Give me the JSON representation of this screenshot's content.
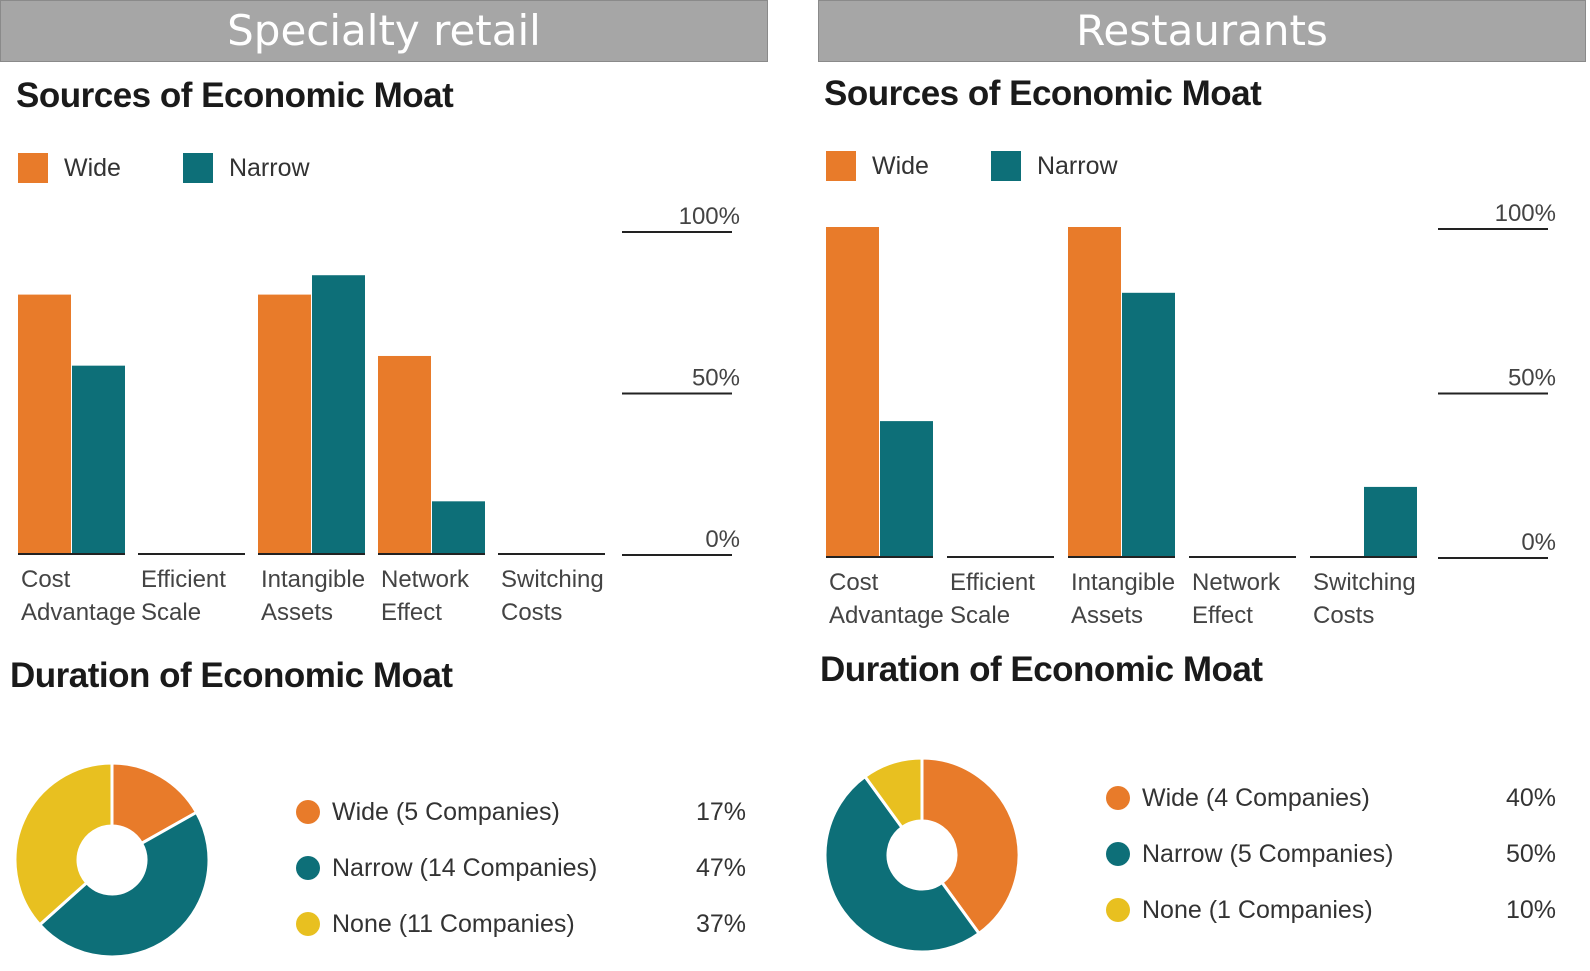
{
  "colors": {
    "wide": "#e87b2a",
    "narrow": "#0d6f78",
    "none": "#e8c020",
    "banner": "#a6a6a6"
  },
  "legend": {
    "wide": "Wide",
    "narrow": "Narrow"
  },
  "panels": [
    {
      "banner": "Specialty retail",
      "sources_title": "Sources of Economic Moat",
      "duration_title": "Duration of Economic Moat",
      "ticks": [
        "100%",
        "50%",
        "0%"
      ],
      "categories": [
        {
          "line1": "Cost",
          "line2": "Advantage"
        },
        {
          "line1": "Efficient",
          "line2": "Scale"
        },
        {
          "line1": "Intangible",
          "line2": "Assets"
        },
        {
          "line1": "Network",
          "line2": "Effect"
        },
        {
          "line1": "Switching",
          "line2": "Costs"
        }
      ],
      "pie_legend": [
        {
          "label": "Wide (5 Companies)",
          "pct": "17%",
          "color": "#e87b2a"
        },
        {
          "label": "Narrow (14 Companies)",
          "pct": "47%",
          "color": "#0d6f78"
        },
        {
          "label": "None (11 Companies)",
          "pct": "37%",
          "color": "#e8c020"
        }
      ]
    },
    {
      "banner": "Restaurants",
      "sources_title": "Sources of Economic Moat",
      "duration_title": "Duration of Economic Moat",
      "ticks": [
        "100%",
        "50%",
        "0%"
      ],
      "categories": [
        {
          "line1": "Cost",
          "line2": "Advantage"
        },
        {
          "line1": "Efficient",
          "line2": "Scale"
        },
        {
          "line1": "Intangible",
          "line2": "Assets"
        },
        {
          "line1": "Network",
          "line2": "Effect"
        },
        {
          "line1": "Switching",
          "line2": "Costs"
        }
      ],
      "pie_legend": [
        {
          "label": "Wide (4 Companies)",
          "pct": "40%",
          "color": "#e87b2a"
        },
        {
          "label": "Narrow (5 Companies)",
          "pct": "50%",
          "color": "#0d6f78"
        },
        {
          "label": "None (1 Companies)",
          "pct": "10%",
          "color": "#e8c020"
        }
      ]
    }
  ],
  "chart_data": [
    {
      "type": "bar",
      "panel": "Specialty retail",
      "title": "Sources of Economic Moat",
      "categories": [
        "Cost Advantage",
        "Efficient Scale",
        "Intangible Assets",
        "Network Effect",
        "Switching Costs"
      ],
      "series": [
        {
          "name": "Wide",
          "values": [
            80,
            0,
            80,
            61,
            0
          ]
        },
        {
          "name": "Narrow",
          "values": [
            58,
            0,
            86,
            16,
            0
          ]
        }
      ],
      "ylim": [
        0,
        100
      ],
      "yticks": [
        "0%",
        "50%",
        "100%"
      ]
    },
    {
      "type": "pie",
      "panel": "Specialty retail",
      "title": "Duration of Economic Moat",
      "labels": [
        "Wide (5 Companies)",
        "Narrow (14 Companies)",
        "None (11 Companies)"
      ],
      "values": [
        17,
        47,
        37
      ]
    },
    {
      "type": "bar",
      "panel": "Restaurants",
      "title": "Sources of Economic Moat",
      "categories": [
        "Cost Advantage",
        "Efficient Scale",
        "Intangible Assets",
        "Network Effect",
        "Switching Costs"
      ],
      "series": [
        {
          "name": "Wide",
          "values": [
            100,
            0,
            100,
            0,
            0
          ]
        },
        {
          "name": "Narrow",
          "values": [
            41,
            0,
            80,
            0,
            21
          ]
        }
      ],
      "ylim": [
        0,
        100
      ],
      "yticks": [
        "0%",
        "50%",
        "100%"
      ]
    },
    {
      "type": "pie",
      "panel": "Restaurants",
      "title": "Duration of Economic Moat",
      "labels": [
        "Wide (4 Companies)",
        "Narrow (5 Companies)",
        "None (1 Companies)"
      ],
      "values": [
        40,
        50,
        10
      ]
    }
  ]
}
